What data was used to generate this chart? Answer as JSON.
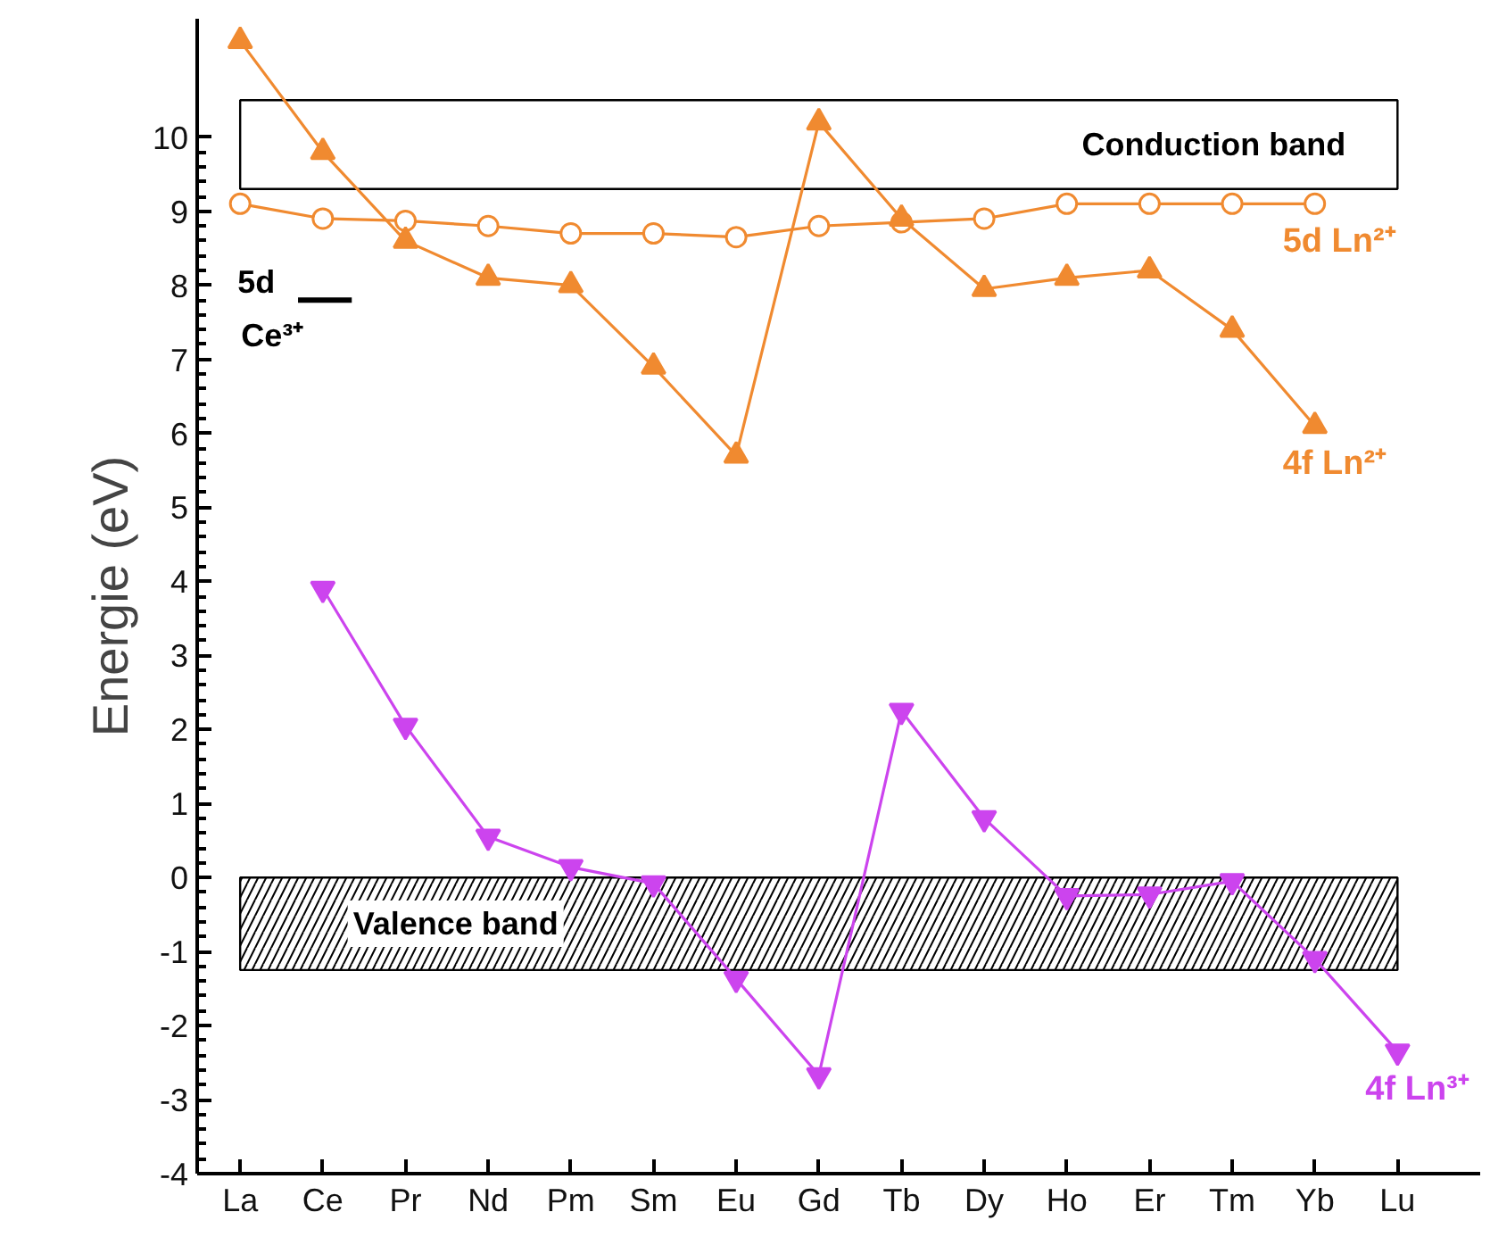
{
  "chart_data": {
    "type": "line",
    "ylabel": "Energie (eV)",
    "categories": [
      "La",
      "Ce",
      "Pr",
      "Nd",
      "Pm",
      "Sm",
      "Eu",
      "Gd",
      "Tb",
      "Dy",
      "Ho",
      "Er",
      "Tm",
      "Yb",
      "Lu"
    ],
    "series": [
      {
        "name": "5d Ln²⁺",
        "color": "#f08a30",
        "marker": "circle",
        "values": [
          9.1,
          8.9,
          8.87,
          8.8,
          8.7,
          8.7,
          8.65,
          8.8,
          8.85,
          8.9,
          9.1,
          9.1,
          9.1,
          9.1,
          null
        ]
      },
      {
        "name": "4f Ln²⁺",
        "color": "#f08a30",
        "marker": "triangle",
        "values": [
          11.3,
          9.8,
          8.6,
          8.1,
          8.0,
          6.9,
          5.7,
          10.2,
          8.9,
          7.95,
          8.1,
          8.2,
          7.4,
          6.1,
          null
        ]
      },
      {
        "name": "4f Ln³⁺",
        "color": "#cc44ee",
        "marker": "triangle",
        "values": [
          null,
          3.9,
          2.05,
          0.55,
          0.14,
          -0.08,
          -1.37,
          -2.67,
          2.25,
          0.8,
          -0.25,
          -0.23,
          -0.05,
          -1.1,
          -2.35
        ]
      }
    ],
    "ylim": [
      -4,
      11.6
    ],
    "yticks": [
      -4,
      -3,
      -2,
      -1,
      0,
      1,
      2,
      3,
      4,
      5,
      6,
      7,
      8,
      9,
      10
    ],
    "bands": [
      {
        "axis": "y",
        "from": 9.3,
        "to": 10.5,
        "label": "Conduction band"
      },
      {
        "axis": "y",
        "from": -1.25,
        "to": 0,
        "label": "Valence band",
        "color": "#000000"
      }
    ],
    "ref_lines": [
      {
        "axis": "y",
        "value": 7.8,
        "label": "5d Ce³⁺"
      }
    ],
    "grid": false
  }
}
